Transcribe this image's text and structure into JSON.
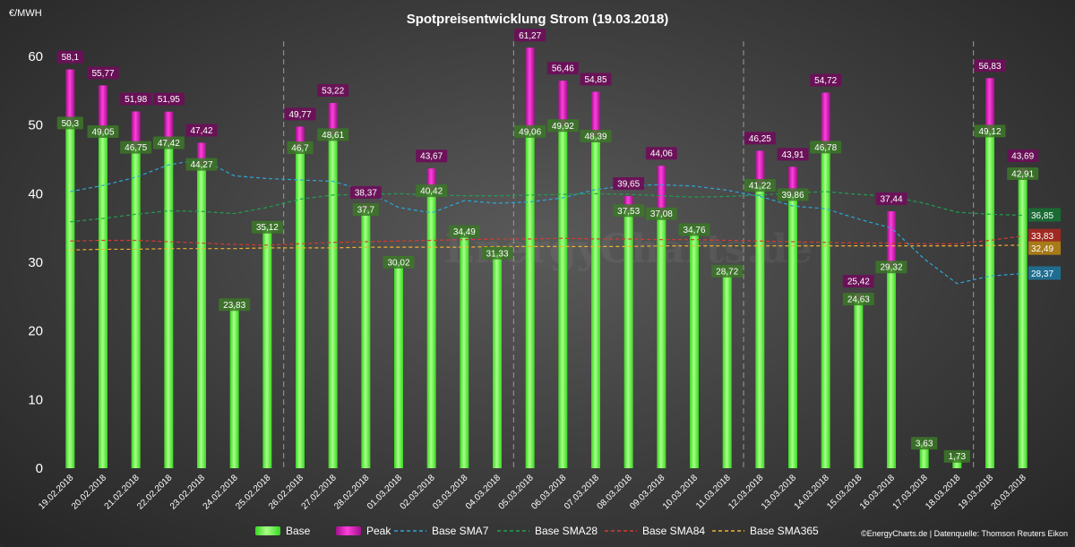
{
  "chart_data": {
    "type": "bar",
    "title": "Spotpreisentwicklung  Strom  (19.03.2018)",
    "ylabel": "€/MWH",
    "ylim": [
      0,
      63
    ],
    "yticks": [
      0,
      10,
      20,
      30,
      40,
      50,
      60
    ],
    "grid": false,
    "legend": "bottom",
    "categories": [
      "19.02.2018",
      "20.02.2018",
      "21.02.2018",
      "22.02.2018",
      "23.02.2018",
      "24.02.2018",
      "25.02.2018",
      "26.02.2018",
      "27.02.2018",
      "28.02.2018",
      "01.03.2018",
      "02.03.2018",
      "03.03.2018",
      "04.03.2018",
      "05.03.2018",
      "06.03.2018",
      "07.03.2018",
      "08.03.2018",
      "09.03.2018",
      "10.03.2018",
      "11.03.2018",
      "12.03.2018",
      "13.03.2018",
      "14.03.2018",
      "15.03.2018",
      "16.03.2018",
      "17.03.2018",
      "18.03.2018",
      "19.03.2018",
      "20.03.2018"
    ],
    "week_separators_after": [
      "25.02.2018",
      "04.03.2018",
      "11.03.2018",
      "18.03.2018"
    ],
    "series": [
      {
        "name": "Base",
        "kind": "bar",
        "color": "#7dff5a",
        "values": [
          50.3,
          49.05,
          46.75,
          47.42,
          44.27,
          23.83,
          35.12,
          46.7,
          48.61,
          37.7,
          30.02,
          40.42,
          34.49,
          31.33,
          49.06,
          49.92,
          48.39,
          37.53,
          37.08,
          34.76,
          28.72,
          41.22,
          39.86,
          46.78,
          24.63,
          29.32,
          3.63,
          1.73,
          49.12,
          42.91
        ],
        "labels": [
          "50,3",
          "49,05",
          "46,75",
          "47,42",
          "44,27",
          "23,83",
          "35,12",
          "46,7",
          "48,61",
          "37,7",
          "30,02",
          "40,42",
          "34,49",
          "31,33",
          "49,06",
          "49,92",
          "48,39",
          "37,53",
          "37,08",
          "34,76",
          "28,72",
          "41,22",
          "39,86",
          "46,78",
          "24,63",
          "29,32",
          "3,63",
          "1,73",
          "49,12",
          "42,91"
        ]
      },
      {
        "name": "Peak",
        "kind": "bar",
        "color": "#e020c0",
        "values": [
          58.1,
          55.77,
          51.98,
          51.95,
          47.42,
          null,
          null,
          49.77,
          53.22,
          38.37,
          null,
          43.67,
          null,
          null,
          61.27,
          56.46,
          54.85,
          39.65,
          44.06,
          null,
          null,
          46.25,
          43.91,
          54.72,
          25.42,
          37.44,
          null,
          null,
          56.83,
          43.69
        ],
        "labels": [
          "58,1",
          "55,77",
          "51,98",
          "51,95",
          "47,42",
          "",
          "",
          "49,77",
          "53,22",
          "38,37",
          "",
          "43,67",
          "",
          "",
          "61,27",
          "56,46",
          "54,85",
          "39,65",
          "44,06",
          "",
          "",
          "46,25",
          "43,91",
          "54,72",
          "25,42",
          "37,44",
          "",
          "",
          "56,83",
          "43,69"
        ]
      },
      {
        "name": "Base SMA7",
        "kind": "line",
        "color": "#2aa8d8",
        "values": [
          40.3,
          41.2,
          42.4,
          44.2,
          45.0,
          42.6,
          42.2,
          42.0,
          41.8,
          40.4,
          38.0,
          37.2,
          39.0,
          38.6,
          38.8,
          39.4,
          40.6,
          41.2,
          41.3,
          41.1,
          40.5,
          39.6,
          38.2,
          37.8,
          36.3,
          35.0,
          30.5,
          26.9,
          28.0,
          28.37
        ],
        "end_label": "28,37"
      },
      {
        "name": "Base SMA28",
        "kind": "line",
        "color": "#20a050",
        "values": [
          35.9,
          36.4,
          37.0,
          37.5,
          37.4,
          37.1,
          38.0,
          39.2,
          39.8,
          39.9,
          40.0,
          39.8,
          39.7,
          39.7,
          39.8,
          39.9,
          40.0,
          39.9,
          39.7,
          39.5,
          39.6,
          39.8,
          40.1,
          40.3,
          39.9,
          39.6,
          38.6,
          37.3,
          37.0,
          36.85
        ],
        "end_label": "36,85"
      },
      {
        "name": "Base SMA84",
        "kind": "line",
        "color": "#d83a30",
        "values": [
          33.1,
          33.2,
          33.2,
          33.0,
          32.8,
          32.6,
          32.5,
          32.7,
          32.9,
          33.0,
          33.1,
          33.2,
          33.3,
          33.4,
          33.4,
          33.5,
          33.4,
          33.4,
          33.3,
          33.3,
          33.2,
          33.1,
          33.0,
          32.9,
          32.8,
          32.8,
          32.7,
          32.7,
          33.2,
          33.83
        ],
        "end_label": "33,83"
      },
      {
        "name": "Base SMA365",
        "kind": "line",
        "color": "#f0b030",
        "values": [
          31.8,
          31.9,
          31.9,
          32.0,
          32.0,
          32.0,
          32.1,
          32.1,
          32.1,
          32.2,
          32.2,
          32.2,
          32.2,
          32.3,
          32.3,
          32.3,
          32.3,
          32.3,
          32.4,
          32.4,
          32.4,
          32.4,
          32.4,
          32.4,
          32.4,
          32.4,
          32.4,
          32.4,
          32.45,
          32.49
        ],
        "end_label": "32,49"
      }
    ]
  },
  "watermark": "EnergyCharts.de",
  "credit": "©EnergyCharts.de | Datenquelle: Thomson Reuters Eikon"
}
